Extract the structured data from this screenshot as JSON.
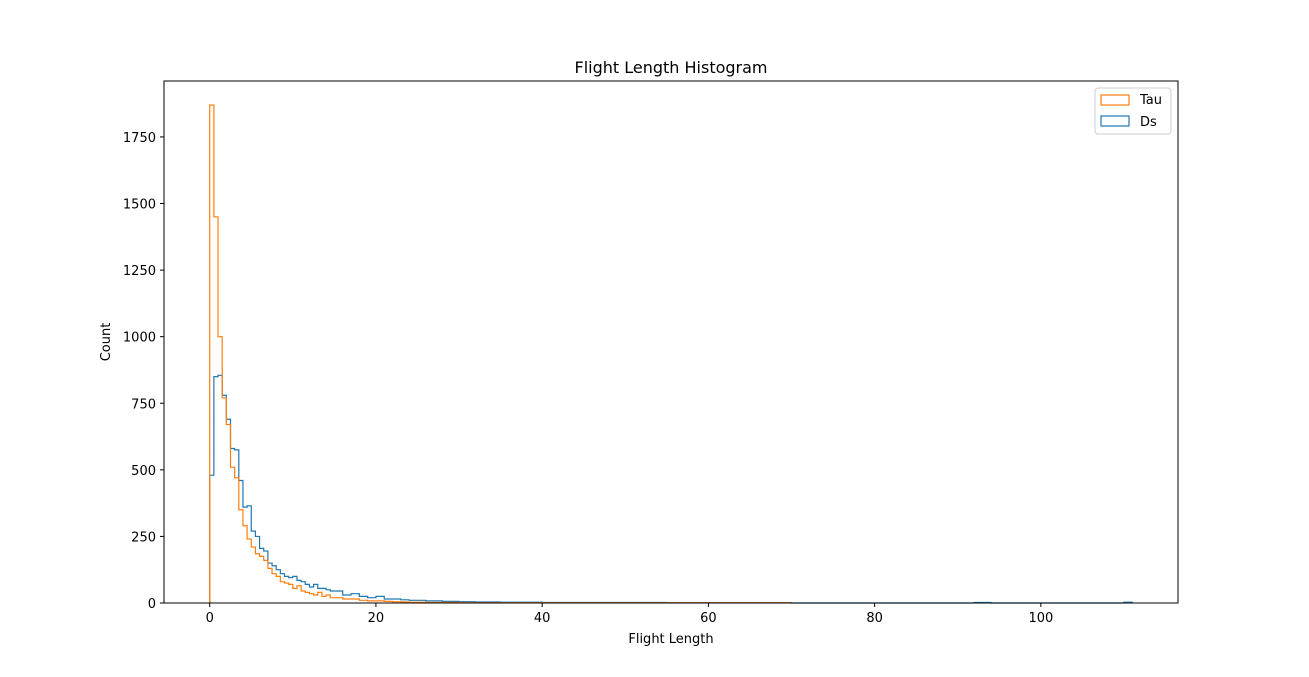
{
  "chart_data": {
    "type": "histogram",
    "title": "Flight Length Histogram",
    "xlabel": "Flight Length",
    "ylabel": "Count",
    "xlim": [
      -5.5,
      116.5
    ],
    "ylim": [
      0,
      1960
    ],
    "x_ticks": [
      0,
      20,
      40,
      60,
      80,
      100
    ],
    "y_ticks": [
      0,
      250,
      500,
      750,
      1000,
      1250,
      1500,
      1750
    ],
    "grid": false,
    "legend_position": "top-right",
    "series": [
      {
        "name": "Tau",
        "color": "#ff7f0e",
        "bin_edges": [
          0,
          0.5,
          1,
          1.5,
          2,
          2.5,
          3,
          3.5,
          4,
          4.5,
          5,
          5.5,
          6,
          6.5,
          7,
          7.5,
          8,
          8.5,
          9,
          9.5,
          10,
          10.5,
          11,
          11.5,
          12,
          12.5,
          13,
          13.5,
          14,
          14.5,
          15,
          16,
          17,
          18,
          19,
          20,
          21,
          22,
          23,
          24,
          25,
          26,
          28,
          30,
          32,
          35,
          40,
          46,
          50,
          55,
          60,
          65,
          70
        ],
        "counts": [
          1870,
          1450,
          1000,
          770,
          670,
          510,
          470,
          350,
          290,
          240,
          210,
          185,
          175,
          160,
          130,
          110,
          100,
          80,
          75,
          70,
          55,
          65,
          45,
          40,
          35,
          30,
          40,
          25,
          30,
          20,
          20,
          15,
          15,
          10,
          8,
          8,
          6,
          5,
          4,
          3,
          3,
          2,
          2,
          1,
          1,
          1,
          1,
          1,
          1,
          1,
          1,
          1
        ]
      },
      {
        "name": "Ds",
        "color": "#1f77b4",
        "bin_edges": [
          0,
          0.5,
          1,
          1.5,
          2,
          2.5,
          3,
          3.5,
          4,
          4.5,
          5,
          5.5,
          6,
          6.5,
          7,
          7.5,
          8,
          8.5,
          9,
          9.5,
          10,
          10.5,
          11,
          11.5,
          12,
          12.5,
          13,
          13.5,
          14,
          14.5,
          15,
          16,
          17,
          18,
          19,
          20,
          21,
          22,
          23,
          24,
          25,
          26,
          28,
          30,
          32,
          35,
          40,
          46,
          50,
          55,
          60,
          65,
          70,
          92,
          94,
          110,
          111
        ],
        "counts": [
          480,
          850,
          855,
          780,
          690,
          580,
          575,
          460,
          360,
          365,
          270,
          250,
          205,
          195,
          150,
          140,
          125,
          110,
          100,
          95,
          100,
          85,
          80,
          70,
          60,
          70,
          55,
          55,
          50,
          45,
          45,
          30,
          35,
          25,
          20,
          25,
          15,
          15,
          12,
          10,
          10,
          8,
          6,
          5,
          4,
          3,
          2,
          2,
          2,
          1,
          1,
          1,
          0,
          2,
          0,
          3
        ]
      }
    ]
  }
}
